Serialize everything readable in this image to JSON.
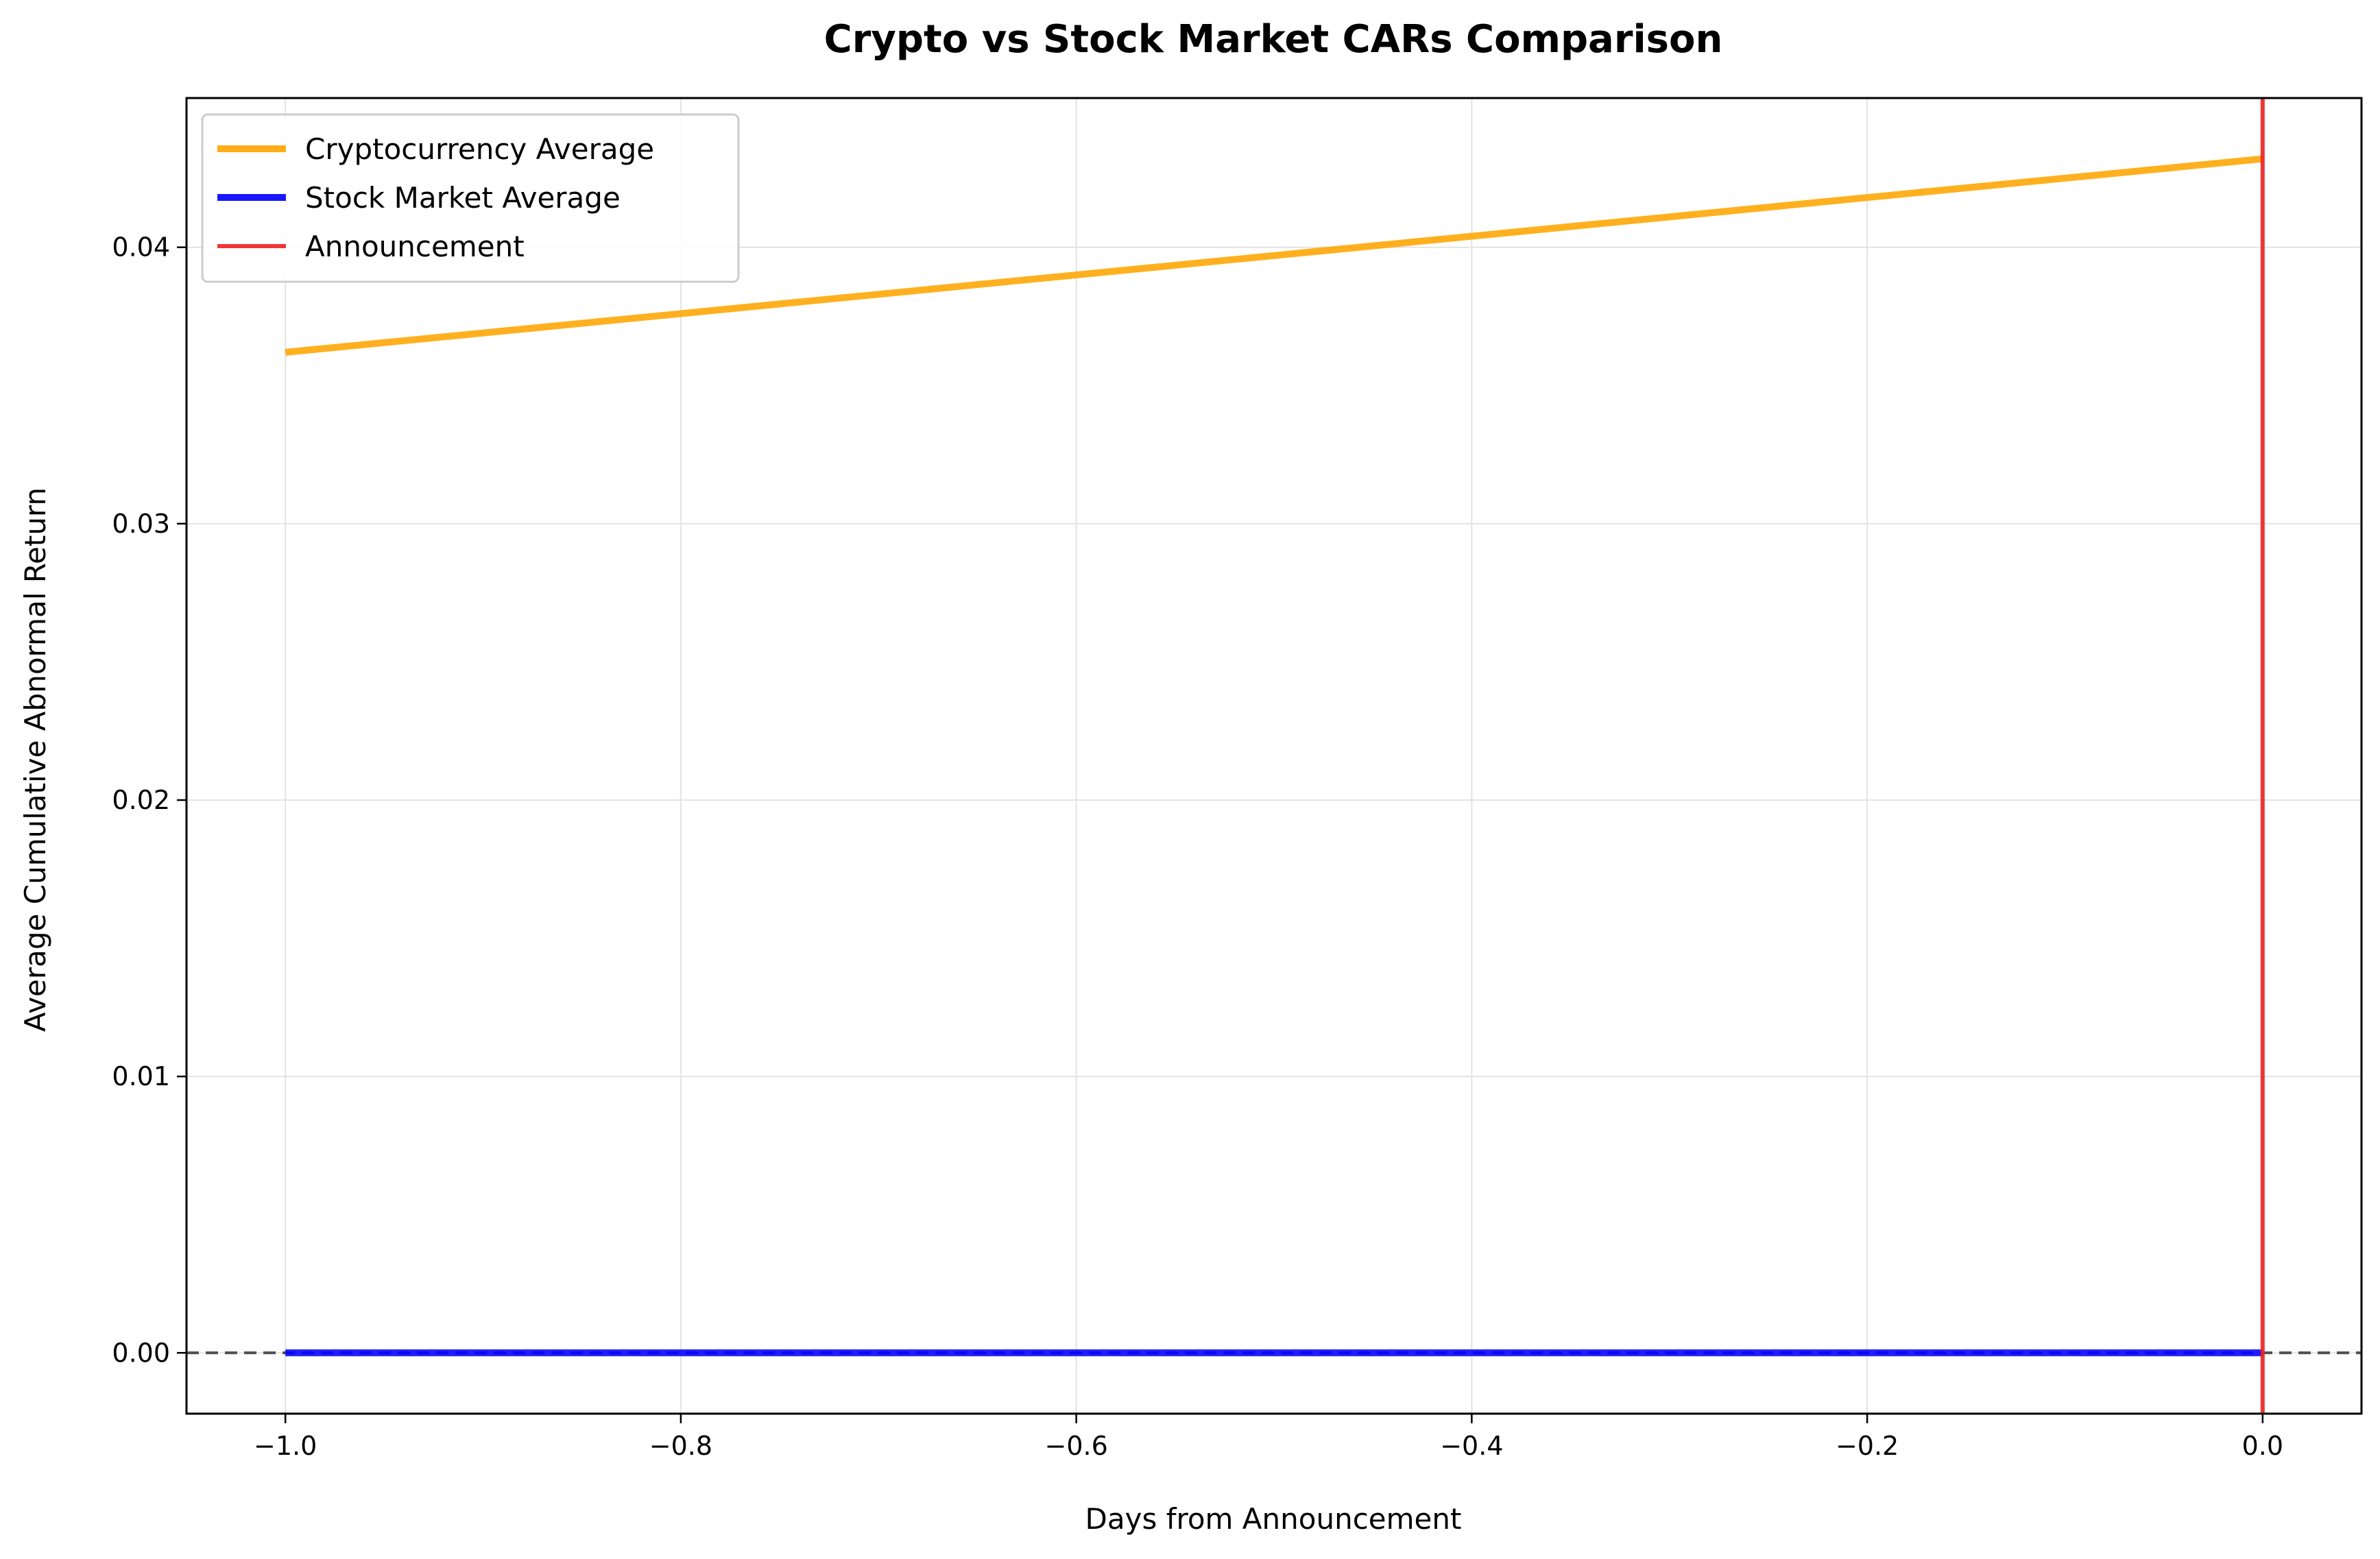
{
  "chart_data": {
    "type": "line",
    "title": "Crypto vs Stock Market CARs Comparison",
    "xlabel": "Days from Announcement",
    "ylabel": "Average Cumulative Abnormal Return",
    "xlim": [
      -1.05,
      0.05
    ],
    "ylim": [
      -0.0022,
      0.0454
    ],
    "x_ticks": [
      -1.0,
      -0.8,
      -0.6,
      -0.4,
      -0.2,
      0.0
    ],
    "x_tick_labels": [
      "−1.0",
      "−0.8",
      "−0.6",
      "−0.4",
      "−0.2",
      "0.0"
    ],
    "y_ticks": [
      0.0,
      0.01,
      0.02,
      0.03,
      0.04
    ],
    "y_tick_labels": [
      "0.00",
      "0.01",
      "0.02",
      "0.03",
      "0.04"
    ],
    "grid": true,
    "legend_position": "top-left",
    "series": [
      {
        "name": "Cryptocurrency Average",
        "color": "#ffa500",
        "x": [
          -1.0,
          0.0
        ],
        "values": [
          0.0362,
          0.0432
        ]
      },
      {
        "name": "Stock Market Average",
        "color": "#0000ff",
        "x": [
          -1.0,
          0.0
        ],
        "values": [
          0.0,
          0.0
        ]
      }
    ],
    "vlines": [
      {
        "name": "Announcement",
        "x": 0.0,
        "color": "#ee2222"
      }
    ],
    "hlines": [
      {
        "y": 0.0,
        "color": "#333333",
        "style": "dashed"
      }
    ]
  }
}
